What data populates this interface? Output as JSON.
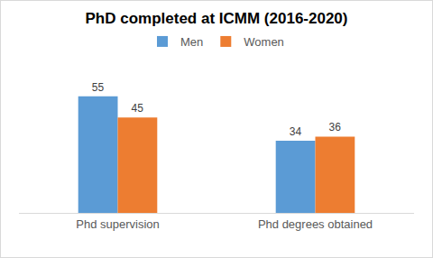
{
  "chart_data": {
    "type": "bar",
    "title": "PhD completed at ICMM (2016-2020)",
    "categories": [
      "Phd supervision",
      "Phd degrees obtained"
    ],
    "series": [
      {
        "name": "Men",
        "color": "#5b9bd5",
        "values": [
          55,
          34
        ]
      },
      {
        "name": "Women",
        "color": "#ed7d31",
        "values": [
          45,
          36
        ]
      }
    ],
    "ylim": [
      0,
      60
    ],
    "grid": false,
    "legend": "top",
    "data_labels": true,
    "tick_labels": "x"
  }
}
